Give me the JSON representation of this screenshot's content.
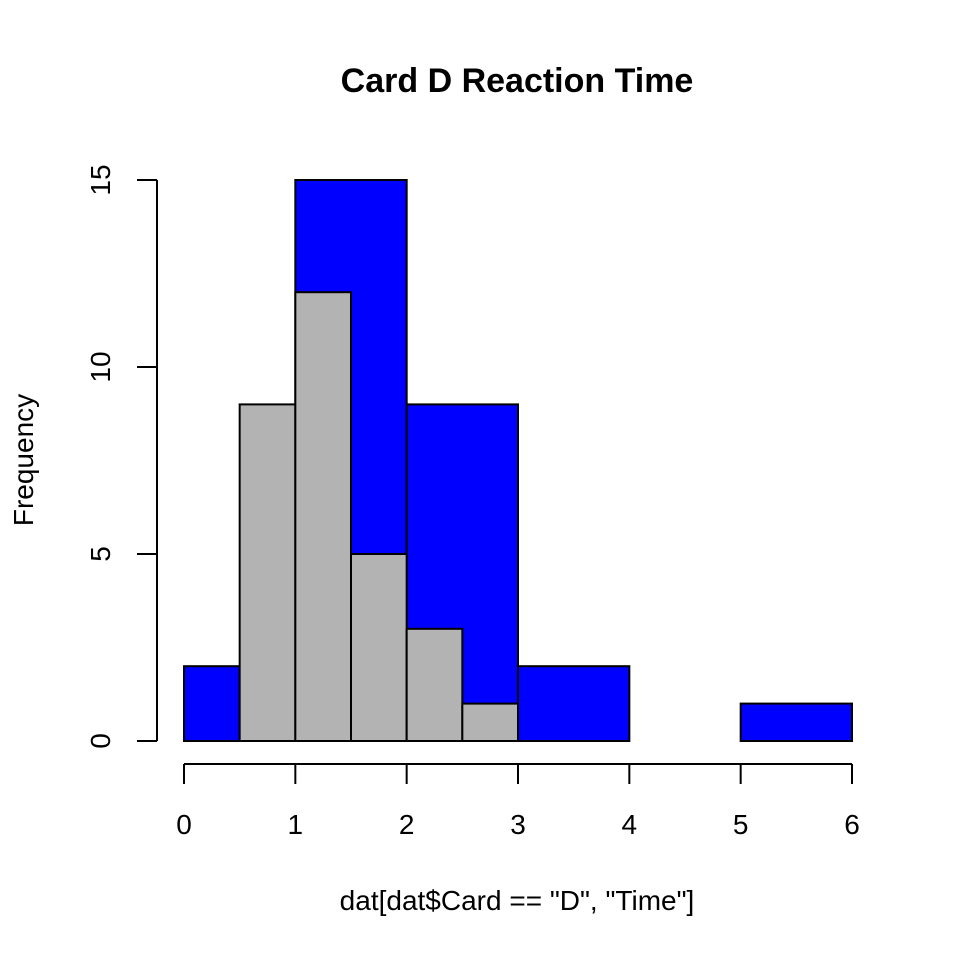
{
  "chart_data": {
    "type": "bar",
    "title": "Card D Reaction Time",
    "xlabel": "dat[dat$Card == \"D\", \"Time\"]",
    "ylabel": "Frequency",
    "xlim": [
      0,
      6
    ],
    "ylim": [
      0,
      15
    ],
    "x_ticks": [
      "0",
      "1",
      "2",
      "3",
      "4",
      "5",
      "6"
    ],
    "y_ticks": [
      "0",
      "5",
      "10",
      "15"
    ],
    "grid": false,
    "colors": {
      "series_1": "#0000ff",
      "series_2": "#b3b3b3"
    },
    "series": [
      {
        "bins": [
          {
            "x0": 0,
            "x1": 0.5,
            "count": 2
          },
          {
            "x0": 1,
            "x1": 2,
            "count": 15
          },
          {
            "x0": 2,
            "x1": 3,
            "count": 9
          },
          {
            "x0": 3,
            "x1": 4,
            "count": 2
          },
          {
            "x0": 4,
            "x1": 5,
            "count": 0
          },
          {
            "x0": 5,
            "x1": 6,
            "count": 1
          }
        ]
      },
      {
        "bins": [
          {
            "x0": 0.5,
            "x1": 1,
            "count": 9
          },
          {
            "x0": 1,
            "x1": 1.5,
            "count": 12
          },
          {
            "x0": 1.5,
            "x1": 2,
            "count": 5
          },
          {
            "x0": 2,
            "x1": 2.5,
            "count": 3
          },
          {
            "x0": 2.5,
            "x1": 3,
            "count": 1
          }
        ]
      }
    ]
  }
}
